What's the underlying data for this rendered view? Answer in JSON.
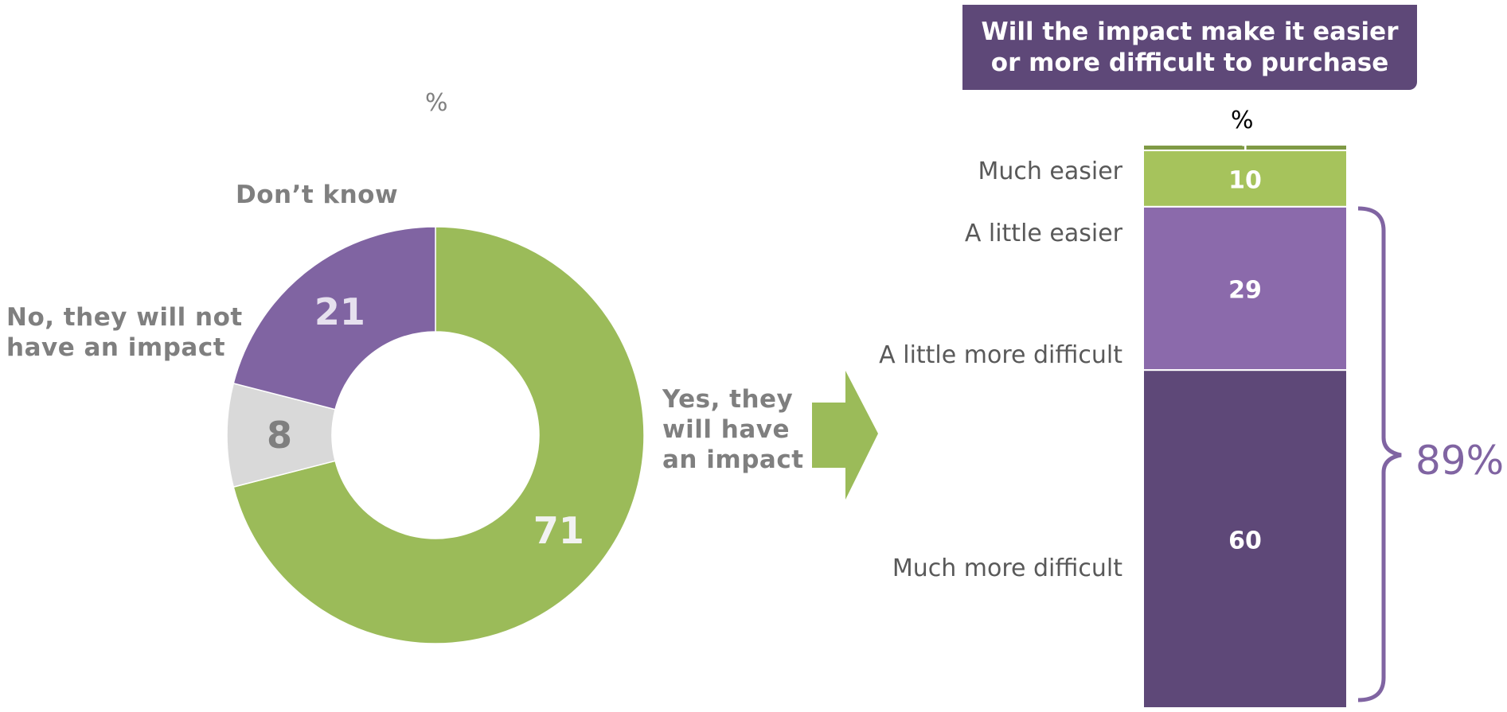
{
  "colors": {
    "yes": "#9bbb59",
    "no": "#8064a2",
    "dont_know": "#d9d9d9",
    "much_easier": "#a6c35c",
    "a_little_easier": "#8b6aab",
    "much_more_difficult": "#5e4878",
    "bracket": "#8064a2",
    "arrow": "#9bbb59"
  },
  "donut": {
    "unit_label": "%",
    "segments": [
      {
        "key": "yes",
        "label_lines": [
          "Yes, they",
          "will  have",
          "an impact"
        ],
        "value": 71
      },
      {
        "key": "dont_know",
        "label_lines": [
          "Don’t know"
        ],
        "value": 8
      },
      {
        "key": "no",
        "label_lines": [
          "No, they will not",
          "have an impact"
        ],
        "value": 21
      }
    ]
  },
  "bar": {
    "title_lines": [
      "Will the impact make it easier",
      "or more difficult to purchase"
    ],
    "unit_label": "%",
    "category_labels": [
      "Much easier",
      "A little easier",
      "A little more difficult",
      "Much more difficult"
    ],
    "total_label": "89%"
  },
  "chart_data": [
    {
      "type": "pie",
      "title": "",
      "unit": "%",
      "categories": [
        "Yes, they will have an impact",
        "Don’t know",
        "No, they will not have an impact"
      ],
      "values": [
        71,
        8,
        21
      ]
    },
    {
      "type": "bar",
      "stacked": true,
      "title": "Will the impact make it easier or more difficult to purchase",
      "unit": "%",
      "categories": [
        "Much easier",
        "A little easier",
        "A little more difficult",
        "Much more difficult"
      ],
      "series": [
        {
          "values": [
            1,
            10,
            29,
            60
          ]
        }
      ],
      "bracket_total": "89%"
    }
  ]
}
